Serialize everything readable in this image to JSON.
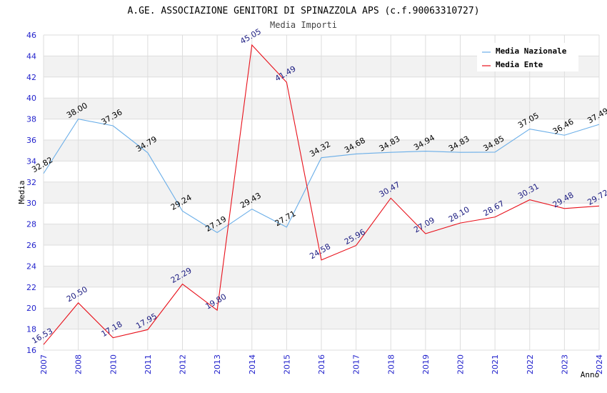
{
  "chart_data": {
    "type": "line",
    "title": "A.GE. ASSOCIAZIONE GENITORI DI SPINAZZOLA APS (c.f.90063310727)",
    "subtitle": "Media Importi",
    "xlabel": "Anno",
    "ylabel": "Media",
    "ylim": [
      16,
      46
    ],
    "ystep": 2,
    "grid": true,
    "legend_position": "top-right",
    "categories": [
      "2007",
      "2008",
      "2010",
      "2011",
      "2012",
      "2013",
      "2014",
      "2015",
      "2016",
      "2017",
      "2018",
      "2019",
      "2020",
      "2021",
      "2022",
      "2023",
      "2024"
    ],
    "series": [
      {
        "name": "Media Nazionale",
        "color": "#6aaee8",
        "label_color": "#000000",
        "values": [
          32.82,
          38.0,
          37.36,
          34.79,
          29.24,
          27.19,
          29.43,
          27.71,
          34.32,
          34.68,
          34.83,
          34.94,
          34.83,
          34.85,
          37.05,
          36.46,
          37.49
        ],
        "labels": [
          "32.82",
          "38.00",
          "37.36",
          "34.79",
          "29.24",
          "27.19",
          "29.43",
          "27.71",
          "34.32",
          "34.68",
          "34.83",
          "34.94",
          "34.83",
          "34.85",
          "37.05",
          "36.46",
          "37.49"
        ]
      },
      {
        "name": "Media Ente",
        "color": "#e8101a",
        "label_color": "#1a1a80",
        "values": [
          16.53,
          20.5,
          17.18,
          17.95,
          22.29,
          19.8,
          45.05,
          41.49,
          24.58,
          25.96,
          30.47,
          27.09,
          28.1,
          28.67,
          30.31,
          29.48,
          29.72
        ],
        "labels": [
          "16.53",
          "20.50",
          "17.18",
          "17.95",
          "22.29",
          "19.80",
          "45.05",
          "41.49",
          "24.58",
          "25.96",
          "30.47",
          "27.09",
          "28.10",
          "28.67",
          "30.31",
          "29.48",
          "29.72"
        ]
      }
    ],
    "colors": {
      "tick_label": "#2222cc",
      "grid_band": "#f2f2f2",
      "grid_line": "#dddddd"
    }
  }
}
